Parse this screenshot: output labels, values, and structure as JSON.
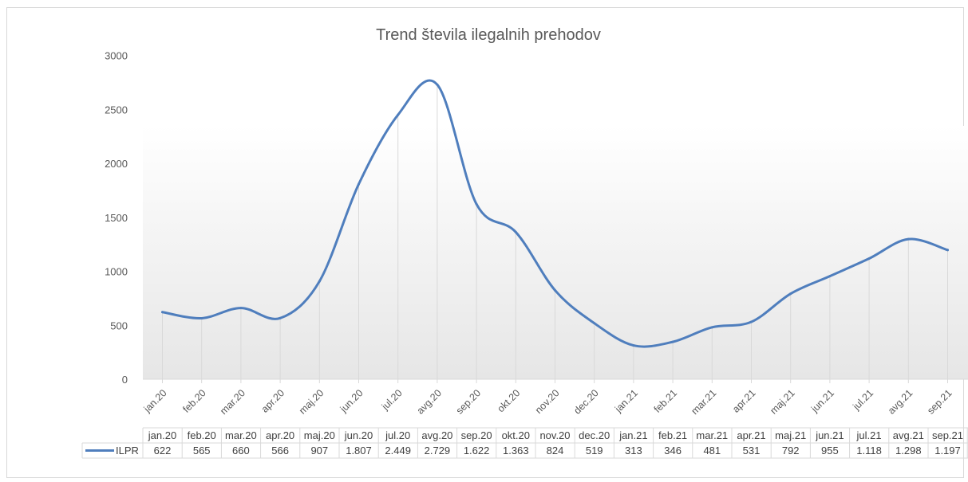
{
  "chart_data": {
    "type": "line",
    "title": "Trend števila ilegalnih prehodov",
    "xlabel": "",
    "ylabel": "",
    "ylim": [
      0,
      3000
    ],
    "yticks": [
      "0",
      "500",
      "1000",
      "1500",
      "2000",
      "2500",
      "3000"
    ],
    "categories": [
      "jan.20",
      "feb.20",
      "mar.20",
      "apr.20",
      "maj.20",
      "jun.20",
      "jul.20",
      "avg.20",
      "sep.20",
      "okt.20",
      "nov.20",
      "dec.20",
      "jan.21",
      "feb.21",
      "mar.21",
      "apr.21",
      "maj.21",
      "jun.21",
      "jul.21",
      "avg.21",
      "sep.21"
    ],
    "series": [
      {
        "name": "ILPR",
        "color": "#4f7ebd",
        "values": [
          622,
          565,
          660,
          566,
          907,
          1807,
          2449,
          2729,
          1622,
          1363,
          824,
          519,
          313,
          346,
          481,
          531,
          792,
          955,
          1118,
          1298,
          1197
        ],
        "labels": [
          "622",
          "565",
          "660",
          "566",
          "907",
          "1.807",
          "2.449",
          "2.729",
          "1.622",
          "1.363",
          "824",
          "519",
          "313",
          "346",
          "481",
          "531",
          "792",
          "955",
          "1.118",
          "1.298",
          "1.197"
        ]
      }
    ],
    "grid": false,
    "drop_lines": true,
    "smooth": true,
    "data_table": true,
    "legend": "data table"
  }
}
